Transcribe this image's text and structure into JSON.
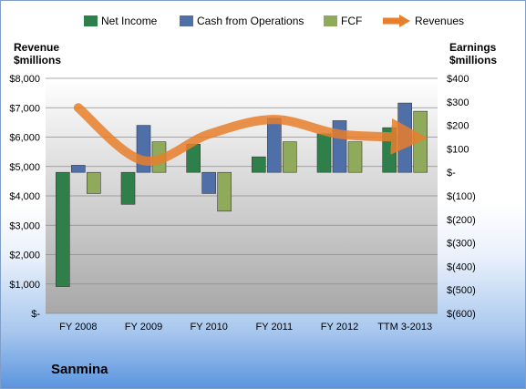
{
  "company": "Sanmina",
  "colors": {
    "net_income": "#2f7f4a",
    "cash_from_operations": "#4f6fa8",
    "fcf": "#8faa5a",
    "revenues": "#e87f2c"
  },
  "chart_data": {
    "type": "bar",
    "categories": [
      "FY 2008",
      "FY 2009",
      "FY 2010",
      "FY 2011",
      "FY 2012",
      "TTM 3-2013"
    ],
    "series": [
      {
        "name": "Net Income",
        "axis": "right",
        "values": [
          -486,
          -136,
          120,
          66,
          164,
          190
        ]
      },
      {
        "name": "Cash from Operations",
        "axis": "right",
        "values": [
          30,
          200,
          -90,
          230,
          220,
          295
        ]
      },
      {
        "name": "FCF",
        "axis": "right",
        "values": [
          -90,
          130,
          -165,
          130,
          130,
          260
        ]
      },
      {
        "name": "Revenues",
        "type": "line",
        "axis": "left",
        "values": [
          7000,
          5200,
          6100,
          6600,
          6100,
          6000
        ]
      }
    ],
    "left_axis": {
      "title_line1": "Revenue",
      "title_line2": "$millions",
      "ylim": [
        0,
        8000
      ],
      "ticks": [
        "$-",
        "$1,000",
        "$2,000",
        "$3,000",
        "$4,000",
        "$5,000",
        "$6,000",
        "$7,000",
        "$8,000"
      ]
    },
    "right_axis": {
      "title_line1": "Earnings",
      "title_line2": "$millions",
      "ylim": [
        -600,
        400
      ],
      "ticks": [
        "$(600)",
        "$(500)",
        "$(400)",
        "$(300)",
        "$(200)",
        "$(100)",
        "$-",
        "$100",
        "$200",
        "$300",
        "$400"
      ]
    },
    "legend_position": "top",
    "grid": true
  }
}
